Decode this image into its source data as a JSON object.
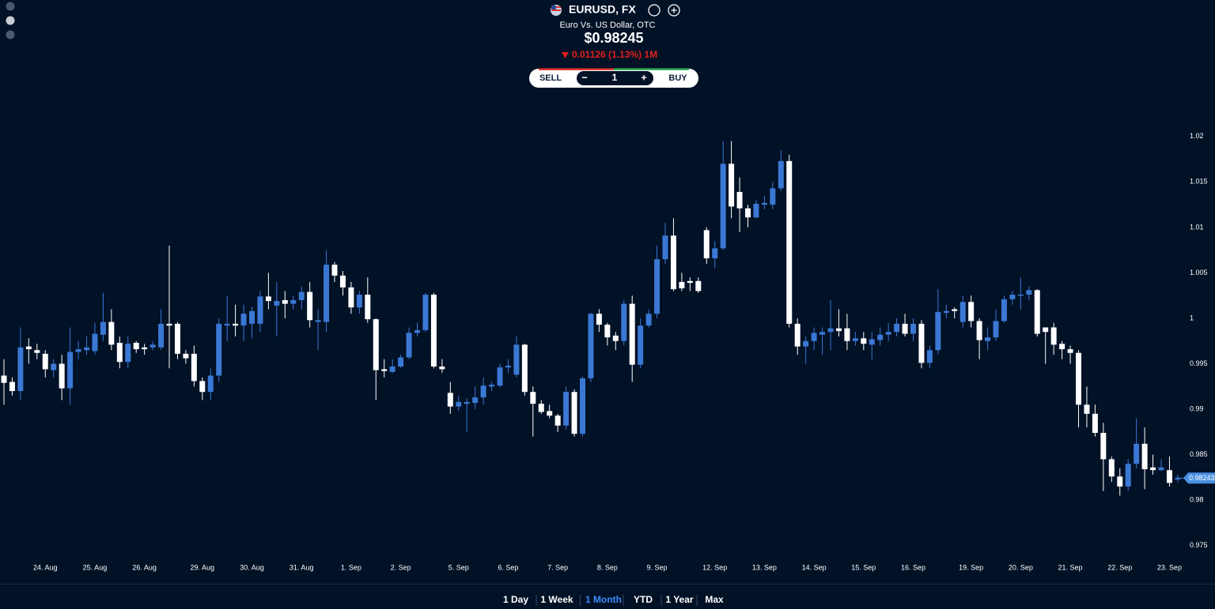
{
  "chart_data": {
    "type": "candlestick",
    "title": "EURUSD, FX",
    "subtitle": "Euro Vs. US Dollar, OTC",
    "price": "$0.98245",
    "change": "0.01126 (1.13%) 1M",
    "up_color": "#3a78d4",
    "down_color": "#ffffff",
    "ylim": [
      0.9735,
      1.0245
    ],
    "yticks": [
      0.975,
      0.98,
      0.985,
      0.99,
      0.995,
      1,
      1.005,
      1.01,
      1.015,
      1.02
    ],
    "last_price": 0.98243,
    "categories": [
      null,
      null,
      null,
      null,
      null,
      "24. Aug",
      null,
      null,
      null,
      null,
      null,
      "25. Aug",
      null,
      null,
      null,
      null,
      null,
      "26. Aug",
      null,
      null,
      null,
      null,
      null,
      null,
      "29. Aug",
      null,
      null,
      null,
      null,
      null,
      "30. Aug",
      null,
      null,
      null,
      null,
      null,
      "31. Aug",
      null,
      null,
      null,
      null,
      null,
      "1. Sep",
      null,
      null,
      null,
      null,
      null,
      "2. Sep",
      null,
      null,
      null,
      null,
      null,
      null,
      "5. Sep",
      null,
      null,
      null,
      null,
      null,
      "6. Sep",
      null,
      null,
      null,
      null,
      null,
      "7. Sep",
      null,
      null,
      null,
      null,
      null,
      "8. Sep",
      null,
      null,
      null,
      null,
      null,
      "9. Sep",
      null,
      null,
      null,
      null,
      null,
      null,
      "12. Sep",
      null,
      null,
      null,
      null,
      null,
      "13. Sep",
      null,
      null,
      null,
      null,
      null,
      "14. Sep",
      null,
      null,
      null,
      null,
      null,
      "15. Sep",
      null,
      null,
      null,
      null,
      null,
      "16. Sep",
      null,
      null,
      null,
      null,
      null,
      null,
      "19. Sep",
      null,
      null,
      null,
      null,
      null,
      "20. Sep",
      null,
      null,
      null,
      null,
      null,
      "21. Sep",
      null,
      null,
      null,
      null,
      null,
      "22. Sep",
      null,
      null,
      null,
      null,
      null,
      "23. Sep",
      null
    ],
    "open": [
      0.9937,
      0.993,
      0.992,
      0.9969,
      0.9965,
      0.9961,
      0.9943,
      0.995,
      0.9923,
      0.9963,
      0.9965,
      0.9964,
      0.9982,
      0.9996,
      0.9973,
      0.9952,
      0.9973,
      0.9968,
      0.9968,
      0.9968,
      0.9994,
      0.9994,
      0.9961,
      0.9961,
      0.9931,
      0.9919,
      0.9937,
      0.9992,
      0.9994,
      0.9992,
      0.9994,
      0.9994,
      1.0024,
      1.0014,
      1.002,
      1.0016,
      1.002,
      1.0029,
      0.9996,
      0.9996,
      1.0059,
      1.0047,
      1.0034,
      1.0012,
      1.0026,
      0.9999,
      0.9944,
      0.9941,
      0.9947,
      0.9957,
      0.9984,
      0.9987,
      1.0026,
      0.9947,
      0.9918,
      0.9903,
      0.9906,
      0.9907,
      0.9913,
      0.9925,
      0.9926,
      0.9946,
      0.9938,
      0.9971,
      0.9919,
      0.9906,
      0.9898,
      0.9893,
      0.9882,
      0.9919,
      0.9873,
      0.9934,
      1.0005,
      0.9993,
      0.9981,
      0.9975,
      1.0016,
      0.9949,
      0.9992,
      1.0005,
      1.0065,
      1.0091,
      1.004,
      1.0041,
      1.0041,
      1.0097,
      1.0066,
      1.0077,
      1.017,
      1.0139,
      1.0121,
      1.0111,
      1.0125,
      1.0125,
      1.0143,
      1.0173,
      0.9994,
      0.9969,
      0.9975,
      0.9982,
      0.9985,
      0.9989,
      0.9989,
      0.9975,
      0.9978,
      0.9971,
      0.9976,
      0.9982,
      0.9985,
      0.9994,
      0.9983,
      0.9994,
      0.9951,
      0.9965,
      1.0006,
      1.001,
      0.9996,
      1.0018,
      0.9997,
      0.9975,
      0.9979,
      0.9997,
      1.0021,
      1.0025,
      1.0026,
      1.0031,
      0.999,
      0.999,
      0.9972,
      0.9966,
      0.9962,
      0.9905,
      0.9895,
      0.9874,
      0.9845,
      0.9826,
      0.9815,
      0.984,
      0.9862,
      0.9836,
      0.9833,
      0.9833,
      0.9823
    ],
    "high": [
      0.9955,
      0.9935,
      0.999,
      0.9978,
      0.9972,
      0.9965,
      0.9955,
      0.996,
      0.999,
      0.9975,
      0.998,
      0.9995,
      1.0028,
      1.001,
      0.998,
      0.998,
      0.9975,
      0.9972,
      0.9975,
      1.001,
      1.008,
      0.9996,
      0.9965,
      0.997,
      0.9935,
      0.9945,
      1.0,
      1.0025,
      1.0015,
      1.0015,
      1.0013,
      1.003,
      1.005,
      1.004,
      1.003,
      1.0025,
      1.0035,
      1.004,
      1.001,
      1.0075,
      1.0062,
      1.0052,
      1.004,
      1.003,
      1.0045,
      1.0,
      0.9955,
      0.9955,
      0.996,
      0.999,
      0.9995,
      1.0028,
      1.0028,
      0.9955,
      0.993,
      0.9915,
      0.9912,
      0.9925,
      0.9935,
      0.993,
      0.995,
      0.9955,
      0.998,
      0.9972,
      0.9925,
      0.991,
      0.9905,
      0.9895,
      0.9925,
      0.9922,
      0.9936,
      1.0006,
      1.001,
      0.9995,
      0.9985,
      1.002,
      1.0025,
      1.0,
      1.001,
      1.008,
      1.0105,
      1.011,
      1.005,
      1.0045,
      1.0045,
      1.01,
      1.0085,
      1.0195,
      1.0195,
      1.0155,
      1.0125,
      1.013,
      1.0135,
      1.015,
      1.0185,
      1.018,
      1.0,
      0.998,
      0.999,
      0.999,
      1.002,
      1.001,
      1.0005,
      0.9985,
      0.9985,
      0.9985,
      0.999,
      0.9995,
      1.0,
      1.0005,
      1.0,
      0.9998,
      0.997,
      1.0032,
      1.0015,
      1.0012,
      1.0025,
      1.0025,
      1.0,
      0.999,
      1.001,
      1.0025,
      1.003,
      1.0045,
      1.0035,
      1.0032,
      0.999,
      0.9995,
      0.9975,
      0.997,
      0.9965,
      0.9925,
      0.9905,
      0.9885,
      0.9848,
      0.9835,
      0.9845,
      0.989,
      0.988,
      0.985,
      0.9845,
      0.9848,
      0.9828
    ],
    "low": [
      0.9905,
      0.9915,
      0.991,
      0.995,
      0.9955,
      0.9935,
      0.9935,
      0.991,
      0.9905,
      0.9955,
      0.996,
      0.996,
      0.9975,
      0.9965,
      0.9945,
      0.9945,
      0.9962,
      0.996,
      0.9965,
      0.9965,
      0.9945,
      0.9955,
      0.995,
      0.9925,
      0.991,
      0.991,
      0.993,
      0.9975,
      0.998,
      0.9975,
      0.9978,
      0.9985,
      1.001,
      0.998,
      1.0,
      1.001,
      1.001,
      0.999,
      0.9965,
      0.9985,
      1.004,
      1.0025,
      1.0005,
      1.0005,
      0.9995,
      0.991,
      0.9935,
      0.994,
      0.9945,
      0.9955,
      0.998,
      0.9985,
      0.9945,
      0.994,
      0.9895,
      0.9898,
      0.9875,
      0.99,
      0.9905,
      0.992,
      0.9924,
      0.994,
      0.9935,
      0.9915,
      0.987,
      0.9895,
      0.989,
      0.9875,
      0.9878,
      0.987,
      0.987,
      0.993,
      0.9985,
      0.997,
      0.9965,
      0.997,
      0.993,
      0.9945,
      0.999,
      1.0,
      1.006,
      1.003,
      1.003,
      1.003,
      1.0028,
      1.006,
      1.0055,
      1.0075,
      1.011,
      1.0095,
      1.01,
      1.011,
      1.012,
      1.012,
      1.014,
      0.999,
      0.996,
      0.995,
      0.9965,
      0.996,
      0.9965,
      0.998,
      0.9965,
      0.997,
      0.9965,
      0.9955,
      0.997,
      0.9975,
      0.998,
      0.998,
      0.9975,
      0.9945,
      0.9945,
      0.996,
      1.0,
      1.0,
      0.999,
      0.999,
      0.9955,
      0.9965,
      0.9975,
      0.9995,
      1.0015,
      1.001,
      1.002,
      0.998,
      0.995,
      0.996,
      0.9955,
      0.995,
      0.988,
      0.988,
      0.987,
      0.981,
      0.982,
      0.9805,
      0.981,
      0.9835,
      0.9812,
      0.9828,
      0.9832,
      0.9815,
      0.982
    ],
    "close": [
      0.9929,
      0.992,
      0.9968,
      0.9966,
      0.9962,
      0.9944,
      0.995,
      0.9923,
      0.9963,
      0.9966,
      0.9968,
      0.9983,
      0.9996,
      0.9971,
      0.9952,
      0.9972,
      0.9966,
      0.9966,
      0.9971,
      0.9994,
      0.9992,
      0.9961,
      0.9956,
      0.9931,
      0.9919,
      0.9937,
      0.9994,
      0.9994,
      0.9992,
      1.0005,
      1.0008,
      1.0024,
      1.0019,
      1.0019,
      1.0016,
      1.002,
      1.0029,
      0.9998,
      0.9998,
      1.0059,
      1.0047,
      1.0034,
      1.0012,
      1.0026,
      0.9999,
      0.9943,
      0.9942,
      0.9947,
      0.9957,
      0.9984,
      0.9987,
      1.0026,
      0.9947,
      0.9944,
      0.9903,
      0.9908,
      0.9908,
      0.9913,
      0.9926,
      0.9927,
      0.9946,
      0.9948,
      0.9971,
      0.9919,
      0.9906,
      0.9897,
      0.9893,
      0.9882,
      0.9919,
      0.9873,
      0.9934,
      1.0005,
      0.9993,
      0.9979,
      0.9975,
      1.0016,
      0.9949,
      0.9992,
      1.0005,
      1.0065,
      1.0091,
      1.0032,
      1.0033,
      1.0039,
      1.003,
      1.0066,
      1.0077,
      1.017,
      1.0123,
      1.0121,
      1.0111,
      1.0126,
      1.0127,
      1.0143,
      1.0173,
      0.9994,
      0.9969,
      0.9975,
      0.9984,
      0.9985,
      0.9989,
      0.9986,
      0.9975,
      0.9978,
      0.9972,
      0.9977,
      0.9982,
      0.9985,
      0.9994,
      0.9983,
      0.9994,
      0.9951,
      0.9965,
      1.0007,
      1.0008,
      1.0008,
      1.0018,
      0.9997,
      0.9976,
      0.9979,
      0.9997,
      1.0021,
      1.0026,
      1.0026,
      1.0031,
      0.9983,
      0.9985,
      0.9971,
      0.9966,
      0.9962,
      0.9905,
      0.9895,
      0.9874,
      0.9845,
      0.9826,
      0.9815,
      0.984,
      0.9862,
      0.9834,
      0.9833,
      0.9836,
      0.9819,
      0.9824
    ]
  },
  "trade": {
    "sell": "SELL",
    "minus": "−",
    "quantity": 1,
    "plus": "+",
    "buy": "BUY"
  },
  "ranges": [
    {
      "label": "1 Day"
    },
    {
      "label": "1 Week"
    },
    {
      "label": "1 Month",
      "active": true
    },
    {
      "label": "YTD"
    },
    {
      "label": "1 Year"
    },
    {
      "label": "Max"
    }
  ]
}
